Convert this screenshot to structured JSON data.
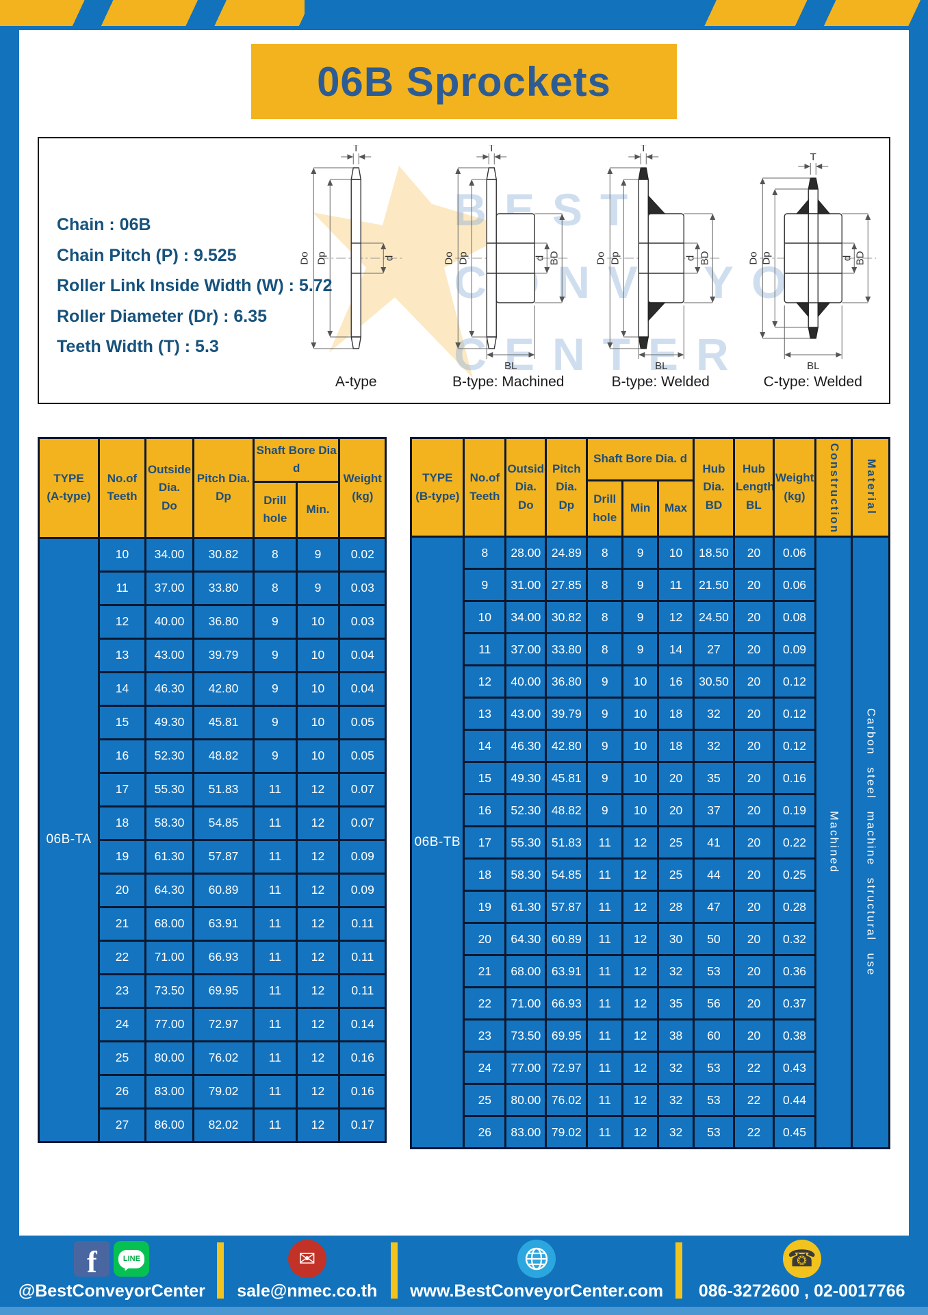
{
  "page": {
    "title": "06B Sprockets"
  },
  "colors": {
    "background_blue": "#1272BC",
    "accent_yellow": "#F2B31F",
    "cell_blue": "#1474BF",
    "header_text_navy": "#1F4E79",
    "grid_navy": "#0B1830"
  },
  "specs": {
    "lines": [
      "Chain : 06B",
      "Chain Pitch (P) : 9.525",
      "Roller Link Inside Width (W) : 5.72",
      "Roller Diameter (Dr) : 6.35",
      "Teeth Width (T) : 5.3"
    ]
  },
  "watermark": {
    "line1": "BEST",
    "line2": "CONVEYOR",
    "line3": "CENTER"
  },
  "diagram_labels": {
    "t": "T",
    "do": "Do",
    "dp": "Dp",
    "d": "d",
    "bd": "BD",
    "bl": "BL"
  },
  "diagrams": {
    "captions": [
      "A-type",
      "B-type: Machined",
      "B-type: Welded",
      "C-type: Welded"
    ]
  },
  "table_a": {
    "headers": {
      "type": "TYPE\n(A-type)",
      "teeth": "No.of\nTeeth",
      "outside": "Outside\nDia.\nDo",
      "pitch": "Pitch Dia.\nDp",
      "shaft_bore": "Shaft Bore Dia d",
      "drill": "Drill hole",
      "min": "Min.",
      "weight": "Weight\n(kg)"
    },
    "type_value": "06B-TA",
    "rows": [
      [
        "10",
        "34.00",
        "30.82",
        "8",
        "9",
        "0.02"
      ],
      [
        "11",
        "37.00",
        "33.80",
        "8",
        "9",
        "0.03"
      ],
      [
        "12",
        "40.00",
        "36.80",
        "9",
        "10",
        "0.03"
      ],
      [
        "13",
        "43.00",
        "39.79",
        "9",
        "10",
        "0.04"
      ],
      [
        "14",
        "46.30",
        "42.80",
        "9",
        "10",
        "0.04"
      ],
      [
        "15",
        "49.30",
        "45.81",
        "9",
        "10",
        "0.05"
      ],
      [
        "16",
        "52.30",
        "48.82",
        "9",
        "10",
        "0.05"
      ],
      [
        "17",
        "55.30",
        "51.83",
        "11",
        "12",
        "0.07"
      ],
      [
        "18",
        "58.30",
        "54.85",
        "11",
        "12",
        "0.07"
      ],
      [
        "19",
        "61.30",
        "57.87",
        "11",
        "12",
        "0.09"
      ],
      [
        "20",
        "64.30",
        "60.89",
        "11",
        "12",
        "0.09"
      ],
      [
        "21",
        "68.00",
        "63.91",
        "11",
        "12",
        "0.11"
      ],
      [
        "22",
        "71.00",
        "66.93",
        "11",
        "12",
        "0.11"
      ],
      [
        "23",
        "73.50",
        "69.95",
        "11",
        "12",
        "0.11"
      ],
      [
        "24",
        "77.00",
        "72.97",
        "11",
        "12",
        "0.14"
      ],
      [
        "25",
        "80.00",
        "76.02",
        "11",
        "12",
        "0.16"
      ],
      [
        "26",
        "83.00",
        "79.02",
        "11",
        "12",
        "0.16"
      ],
      [
        "27",
        "86.00",
        "82.02",
        "11",
        "12",
        "0.17"
      ]
    ]
  },
  "table_b": {
    "headers": {
      "type": "TYPE\n(B-type)",
      "teeth": "No.of\nTeeth",
      "outside": "Outside\nDia.\nDo",
      "pitch": "Pitch\nDia.\nDp",
      "shaft_bore": "Shaft Bore Dia. d",
      "drill": "Drill hole",
      "min": "Min",
      "max": "Max",
      "hub_dia": "Hub\nDia.\nBD",
      "hub_len": "Hub\nLength\nBL",
      "weight": "Weight\n(kg)",
      "construction": "Construction",
      "material": "Material"
    },
    "type_value": "06B-TB",
    "construction_value": "Machined",
    "material_value": "Carbon steel machine structural use",
    "rows": [
      [
        "8",
        "28.00",
        "24.89",
        "8",
        "9",
        "10",
        "18.50",
        "20",
        "0.06"
      ],
      [
        "9",
        "31.00",
        "27.85",
        "8",
        "9",
        "11",
        "21.50",
        "20",
        "0.06"
      ],
      [
        "10",
        "34.00",
        "30.82",
        "8",
        "9",
        "12",
        "24.50",
        "20",
        "0.08"
      ],
      [
        "11",
        "37.00",
        "33.80",
        "8",
        "9",
        "14",
        "27",
        "20",
        "0.09"
      ],
      [
        "12",
        "40.00",
        "36.80",
        "9",
        "10",
        "16",
        "30.50",
        "20",
        "0.12"
      ],
      [
        "13",
        "43.00",
        "39.79",
        "9",
        "10",
        "18",
        "32",
        "20",
        "0.12"
      ],
      [
        "14",
        "46.30",
        "42.80",
        "9",
        "10",
        "18",
        "32",
        "20",
        "0.12"
      ],
      [
        "15",
        "49.30",
        "45.81",
        "9",
        "10",
        "20",
        "35",
        "20",
        "0.16"
      ],
      [
        "16",
        "52.30",
        "48.82",
        "9",
        "10",
        "20",
        "37",
        "20",
        "0.19"
      ],
      [
        "17",
        "55.30",
        "51.83",
        "11",
        "12",
        "25",
        "41",
        "20",
        "0.22"
      ],
      [
        "18",
        "58.30",
        "54.85",
        "11",
        "12",
        "25",
        "44",
        "20",
        "0.25"
      ],
      [
        "19",
        "61.30",
        "57.87",
        "11",
        "12",
        "28",
        "47",
        "20",
        "0.28"
      ],
      [
        "20",
        "64.30",
        "60.89",
        "11",
        "12",
        "30",
        "50",
        "20",
        "0.32"
      ],
      [
        "21",
        "68.00",
        "63.91",
        "11",
        "12",
        "32",
        "53",
        "20",
        "0.36"
      ],
      [
        "22",
        "71.00",
        "66.93",
        "11",
        "12",
        "35",
        "56",
        "20",
        "0.37"
      ],
      [
        "23",
        "73.50",
        "69.95",
        "11",
        "12",
        "38",
        "60",
        "20",
        "0.38"
      ],
      [
        "24",
        "77.00",
        "72.97",
        "11",
        "12",
        "32",
        "53",
        "22",
        "0.43"
      ],
      [
        "25",
        "80.00",
        "76.02",
        "11",
        "12",
        "32",
        "53",
        "22",
        "0.44"
      ],
      [
        "26",
        "83.00",
        "79.02",
        "11",
        "12",
        "32",
        "53",
        "22",
        "0.45"
      ]
    ]
  },
  "footer": {
    "facebook_label": "f",
    "line_label": "LINE",
    "social_handle": "@BestConveyorCenter",
    "email": "sale@nmec.co.th",
    "website": "www.BestConveyorCenter.com",
    "phone": "086-3272600 , 02-0017766",
    "mail_glyph": "✉",
    "phone_glyph": "☎"
  }
}
